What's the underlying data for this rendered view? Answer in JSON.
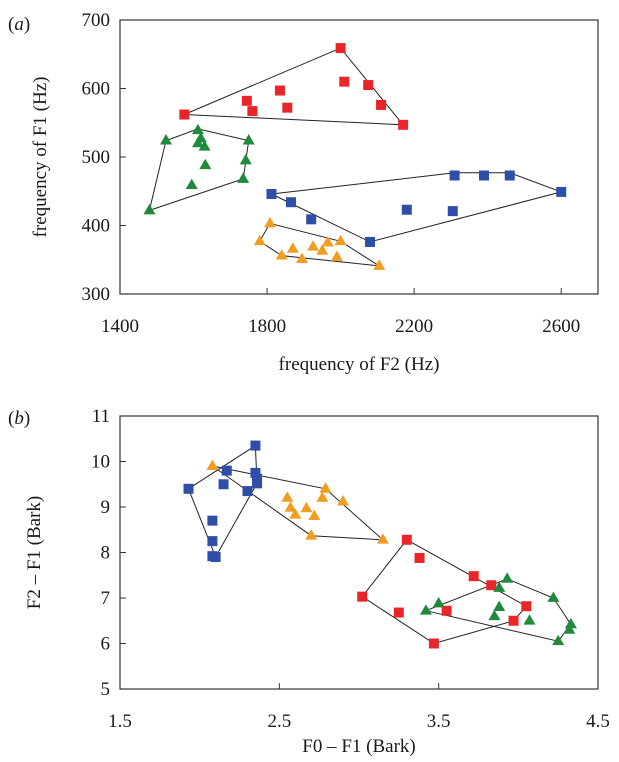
{
  "chart_data": [
    {
      "panel_label": "a",
      "type": "scatter",
      "xlabel": "frequency of F2 (Hz)",
      "ylabel": "frequency of F1 (Hz)",
      "xlim": [
        1400,
        2700
      ],
      "ylim": [
        300,
        700
      ],
      "xticks": [
        1400,
        1800,
        2200,
        2600
      ],
      "yticks": [
        300,
        400,
        500,
        600,
        700
      ],
      "grid": false,
      "series": [
        {
          "marker": "square",
          "color": "#e8262a",
          "points": [
            [
              1575,
              562
            ],
            [
              1745,
              582
            ],
            [
              1760,
              567
            ],
            [
              1835,
              597
            ],
            [
              1855,
              572
            ],
            [
              2000,
              659
            ],
            [
              2010,
              610
            ],
            [
              2075,
              605
            ],
            [
              2110,
              576
            ],
            [
              2170,
              547
            ]
          ],
          "hull": [
            [
              1575,
              562
            ],
            [
              2000,
              659
            ],
            [
              2170,
              547
            ]
          ]
        },
        {
          "marker": "triangle",
          "color": "#1f8a3c",
          "points": [
            [
              1480,
              422
            ],
            [
              1525,
              524
            ],
            [
              1595,
              459
            ],
            [
              1612,
              539
            ],
            [
              1612,
              520
            ],
            [
              1620,
              527
            ],
            [
              1630,
              515
            ],
            [
              1632,
              488
            ],
            [
              1735,
              468
            ],
            [
              1742,
              495
            ],
            [
              1750,
              524
            ]
          ],
          "hull": [
            [
              1480,
              422
            ],
            [
              1525,
              524
            ],
            [
              1612,
              541
            ],
            [
              1750,
              524
            ],
            [
              1735,
              468
            ]
          ]
        },
        {
          "marker": "square",
          "color": "#2e4fa8",
          "points": [
            [
              1812,
              446
            ],
            [
              1865,
              434
            ],
            [
              1920,
              409
            ],
            [
              2080,
              376
            ],
            [
              2180,
              423
            ],
            [
              2305,
              421
            ],
            [
              2310,
              473
            ],
            [
              2390,
              473
            ],
            [
              2460,
              473
            ],
            [
              2600,
              449
            ]
          ],
          "hull": [
            [
              1812,
              446
            ],
            [
              2310,
              477
            ],
            [
              2460,
              477
            ],
            [
              2600,
              449
            ],
            [
              2080,
              376
            ]
          ]
        },
        {
          "marker": "triangle",
          "color": "#f39c22",
          "points": [
            [
              1780,
              377
            ],
            [
              1808,
              403
            ],
            [
              1840,
              356
            ],
            [
              1870,
              366
            ],
            [
              1895,
              351
            ],
            [
              1925,
              369
            ],
            [
              1950,
              363
            ],
            [
              1965,
              375
            ],
            [
              1990,
              354
            ],
            [
              2000,
              377
            ],
            [
              2105,
              341
            ]
          ],
          "hull": [
            [
              1780,
              377
            ],
            [
              1808,
              403
            ],
            [
              2000,
              377
            ],
            [
              2105,
              341
            ],
            [
              1840,
              356
            ]
          ]
        }
      ]
    },
    {
      "panel_label": "b",
      "type": "scatter",
      "xlabel": "F0 – F1 (Bark)",
      "ylabel": "F2 – F1 (Bark)",
      "xlim": [
        1.5,
        4.5
      ],
      "ylim": [
        5,
        11
      ],
      "xticks": [
        "1.5",
        "2.5",
        "3.5",
        "4.5"
      ],
      "yticks": [
        "5",
        "6",
        "7",
        "8",
        "9",
        "10",
        "11"
      ],
      "grid": false,
      "series": [
        {
          "marker": "square",
          "color": "#2e4fa8",
          "points": [
            [
              1.93,
              9.4
            ],
            [
              2.08,
              8.7
            ],
            [
              2.08,
              8.25
            ],
            [
              2.08,
              7.92
            ],
            [
              2.1,
              7.9
            ],
            [
              2.15,
              9.5
            ],
            [
              2.17,
              9.8
            ],
            [
              2.3,
              9.35
            ],
            [
              2.35,
              9.75
            ],
            [
              2.36,
              9.62
            ],
            [
              2.36,
              9.52
            ],
            [
              2.35,
              10.35
            ]
          ],
          "hull": [
            [
              1.93,
              9.4
            ],
            [
              2.35,
              10.35
            ],
            [
              2.36,
              9.52
            ],
            [
              2.1,
              7.9
            ]
          ]
        },
        {
          "marker": "triangle",
          "color": "#f39c22",
          "points": [
            [
              2.08,
              9.9
            ],
            [
              2.55,
              9.2
            ],
            [
              2.57,
              8.98
            ],
            [
              2.6,
              8.83
            ],
            [
              2.67,
              8.97
            ],
            [
              2.7,
              8.37
            ],
            [
              2.72,
              8.8
            ],
            [
              2.77,
              9.2
            ],
            [
              2.79,
              9.4
            ],
            [
              2.9,
              9.12
            ],
            [
              3.15,
              8.28
            ]
          ],
          "hull": [
            [
              2.08,
              9.9
            ],
            [
              2.79,
              9.4
            ],
            [
              3.15,
              8.28
            ],
            [
              2.7,
              8.37
            ]
          ]
        },
        {
          "marker": "square",
          "color": "#e8262a",
          "points": [
            [
              3.02,
              7.03
            ],
            [
              3.25,
              6.68
            ],
            [
              3.3,
              8.28
            ],
            [
              3.38,
              7.88
            ],
            [
              3.47,
              6.0
            ],
            [
              3.55,
              6.72
            ],
            [
              3.72,
              7.48
            ],
            [
              3.83,
              7.28
            ],
            [
              3.97,
              6.5
            ],
            [
              4.05,
              6.82
            ]
          ],
          "hull": [
            [
              3.02,
              7.03
            ],
            [
              3.3,
              8.28
            ],
            [
              4.05,
              6.82
            ],
            [
              3.97,
              6.5
            ],
            [
              3.47,
              6.0
            ]
          ]
        },
        {
          "marker": "triangle",
          "color": "#1f8a3c",
          "points": [
            [
              3.42,
              6.72
            ],
            [
              3.5,
              6.88
            ],
            [
              3.85,
              6.6
            ],
            [
              3.88,
              6.8
            ],
            [
              3.88,
              7.22
            ],
            [
              3.93,
              7.42
            ],
            [
              4.07,
              6.5
            ],
            [
              4.22,
              7.0
            ],
            [
              4.25,
              6.05
            ],
            [
              4.32,
              6.3
            ],
            [
              4.33,
              6.42
            ]
          ],
          "hull": [
            [
              3.42,
              6.72
            ],
            [
              3.93,
              7.42
            ],
            [
              4.22,
              7.0
            ],
            [
              4.33,
              6.42
            ],
            [
              4.25,
              6.05
            ]
          ]
        }
      ]
    }
  ]
}
